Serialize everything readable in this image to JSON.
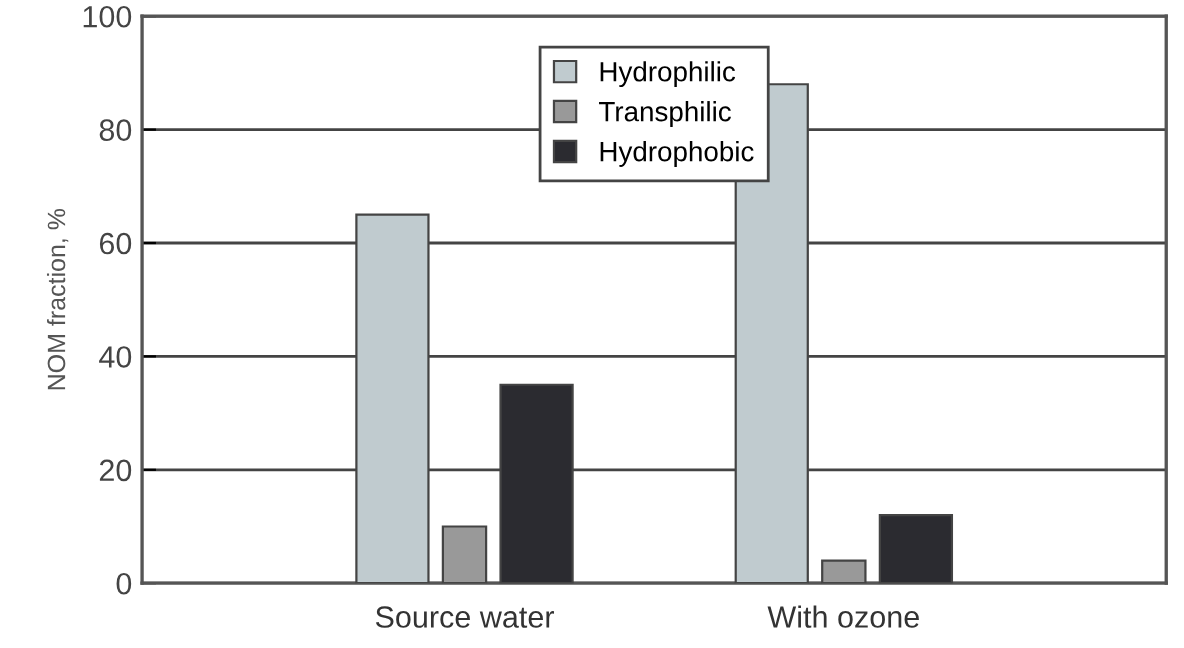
{
  "chart_data": {
    "type": "bar",
    "ylabel": "NOM fraction, %",
    "categories": [
      "Source water",
      "With ozone"
    ],
    "series": [
      {
        "name": "Hydrophilic",
        "color": "#c0cbcf",
        "values": [
          65,
          88
        ]
      },
      {
        "name": "Transphilic",
        "color": "#999999",
        "values": [
          10,
          4
        ]
      },
      {
        "name": "Hydrophobic",
        "color": "#2b2b30",
        "values": [
          35,
          12
        ]
      }
    ],
    "ylim": [
      0,
      100
    ],
    "yticks": [
      0,
      20,
      40,
      60,
      80,
      100
    ],
    "grid": "y",
    "legend": "top"
  }
}
